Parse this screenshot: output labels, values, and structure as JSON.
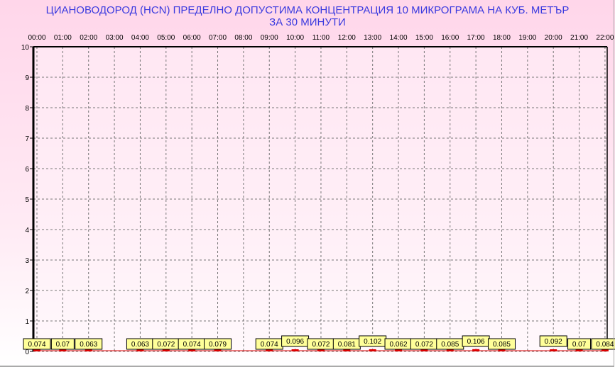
{
  "chart_data": {
    "type": "bar",
    "title_line1": "ЦИАНОВОДОРОД      (HCN)    ПРЕДЕЛНО ДОПУСТИМА КОНЦЕНТРАЦИЯ 10 МИКРОГРАМА  НА КУБ. МЕТЪР",
    "title_line2": "ЗА 30 МИНУТИ",
    "categories": [
      "00:00",
      "01:00",
      "02:00",
      "03:00",
      "04:00",
      "05:00",
      "06:00",
      "07:00",
      "08:00",
      "09:00",
      "10:00",
      "11:00",
      "12:00",
      "13:00",
      "14:00",
      "15:00",
      "16:00",
      "17:00",
      "18:00",
      "19:00",
      "20:00",
      "21:00",
      "22:00"
    ],
    "values": [
      0.074,
      0.07,
      0.063,
      null,
      0.063,
      0.072,
      0.074,
      0.079,
      null,
      0.074,
      0.096,
      0.072,
      0.081,
      0.102,
      0.062,
      0.072,
      0.085,
      0.106,
      0.085,
      null,
      0.092,
      0.07,
      0.084
    ],
    "value_labels": [
      "0.074",
      "0.07",
      "0.063",
      null,
      "0.063",
      "0.072",
      "0.074",
      "0.079",
      null,
      "0.074",
      "0.096",
      "0.072",
      "0.081",
      "0.102",
      "0.062",
      "0.072",
      "0.085",
      "0.106",
      "0.085",
      null,
      "0.092",
      "0.07",
      "0.084"
    ],
    "yticks": [
      "0",
      "1",
      "2",
      "3",
      "4",
      "5",
      "6",
      "7",
      "8",
      "9",
      "10"
    ],
    "ylim": [
      0,
      10
    ],
    "grid": true,
    "xaxis_position": "top",
    "colors": {
      "bar": "#dd0000",
      "label_bg": "#ffff99",
      "title": "#3a3adf",
      "ytick": "#660066"
    }
  }
}
